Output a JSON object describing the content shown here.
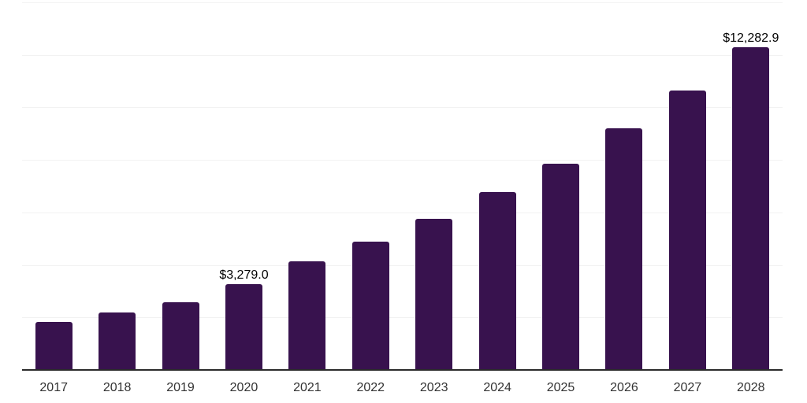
{
  "chart_data": {
    "type": "bar",
    "title": "",
    "xlabel": "",
    "ylabel": "",
    "categories": [
      "2017",
      "2018",
      "2019",
      "2020",
      "2021",
      "2022",
      "2023",
      "2024",
      "2025",
      "2026",
      "2027",
      "2028"
    ],
    "values": [
      1830,
      2190,
      2580,
      3279.0,
      4130,
      4880,
      5750,
      6770,
      7850,
      9190,
      10630,
      12282.9
    ],
    "data_labels": [
      "",
      "",
      "",
      "$3,279.0",
      "",
      "",
      "",
      "",
      "",
      "",
      "",
      "$12,282.9"
    ],
    "ylim": [
      0,
      14000
    ],
    "gridline_step": 2000,
    "grid": "horizontal-only",
    "legend_position": "none",
    "y_tick_labels_visible": false,
    "colors": {
      "bar": "#38124E",
      "axis_line": "#2b2b2b",
      "gridline": "#f2f2f2",
      "data_label_text": "#000000",
      "tick_label_text": "#333333",
      "background": "#ffffff"
    }
  }
}
